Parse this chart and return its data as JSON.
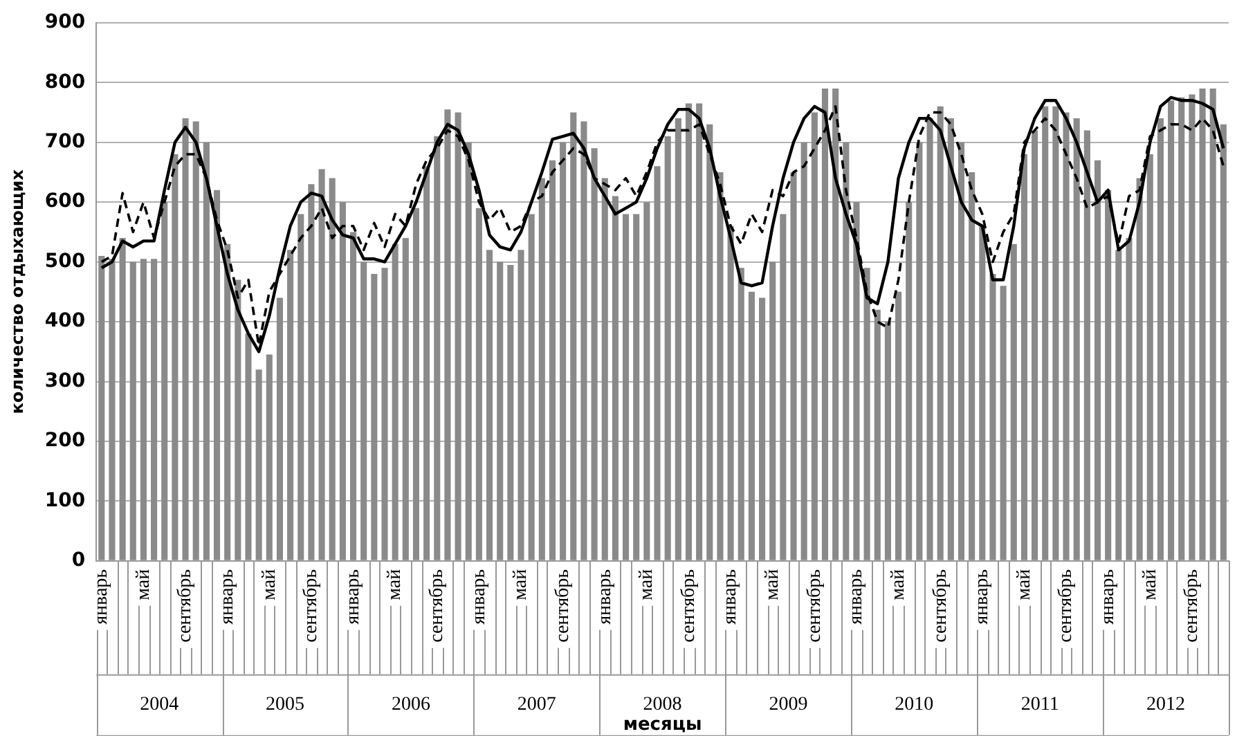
{
  "chart_data": {
    "type": "bar",
    "xlabel": "месяцы",
    "ylabel": "количество отдыхающих",
    "categories": [
      "январь",
      null,
      null,
      null,
      "май",
      null,
      null,
      null,
      "сентябрь",
      null,
      null,
      null,
      "январь",
      null,
      null,
      null,
      "май",
      null,
      null,
      null,
      "сентябрь",
      null,
      null,
      null,
      "январь",
      null,
      null,
      null,
      "май",
      null,
      null,
      null,
      "сентябрь",
      null,
      null,
      null,
      "январь",
      null,
      null,
      null,
      "май",
      null,
      null,
      null,
      "сентябрь",
      null,
      null,
      null,
      "январь",
      null,
      null,
      null,
      "май",
      null,
      null,
      null,
      "сентябрь",
      null,
      null,
      null,
      "январь",
      null,
      null,
      null,
      "май",
      null,
      null,
      null,
      "сентябрь",
      null,
      null,
      null,
      "январь",
      null,
      null,
      null,
      "май",
      null,
      null,
      null,
      "сентябрь",
      null,
      null,
      null,
      "январь",
      null,
      null,
      null,
      "май",
      null,
      null,
      null,
      "сентябрь",
      null,
      null,
      null,
      "январь",
      null,
      null,
      null,
      "май",
      null,
      null,
      null,
      "сентябрь",
      null,
      null,
      null
    ],
    "annotations": [
      "2004",
      "2005",
      "2006",
      "2007",
      "2008",
      "2009",
      "2010",
      "2011",
      "2012"
    ],
    "series": [
      {
        "color": "#8a8a8a",
        "values": [
          510,
          505,
          540,
          500,
          505,
          505,
          600,
          680,
          740,
          735,
          700,
          620,
          530,
          470,
          380,
          320,
          345,
          440,
          520,
          580,
          630,
          655,
          640,
          600,
          550,
          500,
          480,
          490,
          530,
          540,
          590,
          660,
          710,
          755,
          750,
          700,
          590,
          520,
          500,
          495,
          520,
          580,
          640,
          670,
          700,
          750,
          735,
          690,
          640,
          610,
          580,
          580,
          600,
          660,
          710,
          740,
          765,
          765,
          730,
          650,
          560,
          490,
          450,
          440,
          500,
          580,
          650,
          700,
          750,
          790,
          790,
          700,
          600,
          490,
          420,
          400,
          450,
          600,
          700,
          740,
          760,
          740,
          700,
          650,
          560,
          480,
          460,
          530,
          680,
          720,
          760,
          760,
          750,
          740,
          720,
          670,
          620,
          520,
          540,
          640,
          680,
          740,
          770,
          775,
          780,
          790,
          790,
          730
        ]
      },
      {
        "type": "line",
        "color": "#000000",
        "line_style": "solid",
        "values": [
          490,
          500,
          535,
          525,
          535,
          535,
          620,
          700,
          725,
          700,
          640,
          560,
          480,
          420,
          380,
          350,
          410,
          490,
          560,
          600,
          615,
          610,
          570,
          545,
          540,
          505,
          505,
          500,
          530,
          560,
          600,
          650,
          700,
          730,
          720,
          680,
          620,
          545,
          525,
          520,
          550,
          600,
          650,
          705,
          710,
          715,
          690,
          640,
          610,
          580,
          590,
          600,
          640,
          690,
          730,
          755,
          755,
          740,
          690,
          610,
          540,
          465,
          460,
          465,
          560,
          640,
          700,
          740,
          760,
          750,
          640,
          580,
          530,
          440,
          430,
          500,
          640,
          700,
          740,
          740,
          720,
          660,
          600,
          570,
          560,
          470,
          470,
          560,
          690,
          740,
          770,
          770,
          740,
          700,
          650,
          600,
          620,
          520,
          535,
          600,
          700,
          760,
          775,
          770,
          770,
          765,
          755,
          690
        ]
      },
      {
        "type": "line",
        "color": "#000000",
        "line_style": "dashed",
        "values": [
          500,
          510,
          615,
          550,
          600,
          540,
          600,
          660,
          680,
          680,
          640,
          570,
          520,
          440,
          470,
          360,
          450,
          480,
          510,
          540,
          560,
          590,
          540,
          560,
          560,
          520,
          565,
          525,
          580,
          560,
          630,
          670,
          690,
          720,
          710,
          670,
          600,
          570,
          590,
          550,
          560,
          600,
          610,
          650,
          670,
          690,
          680,
          640,
          630,
          620,
          640,
          610,
          650,
          700,
          720,
          720,
          720,
          730,
          680,
          630,
          560,
          530,
          580,
          550,
          620,
          610,
          650,
          660,
          690,
          720,
          760,
          620,
          540,
          450,
          400,
          390,
          470,
          600,
          710,
          750,
          750,
          730,
          680,
          620,
          580,
          500,
          550,
          580,
          700,
          720,
          740,
          720,
          680,
          640,
          590,
          600,
          610,
          530,
          610,
          620,
          710,
          720,
          730,
          730,
          720,
          740,
          720,
          660
        ]
      }
    ],
    "ylim": [
      0,
      900
    ],
    "yticks": [
      0,
      100,
      200,
      300,
      400,
      500,
      600,
      700,
      800,
      900
    ],
    "grid": "y",
    "legend": false,
    "marker": "none"
  }
}
